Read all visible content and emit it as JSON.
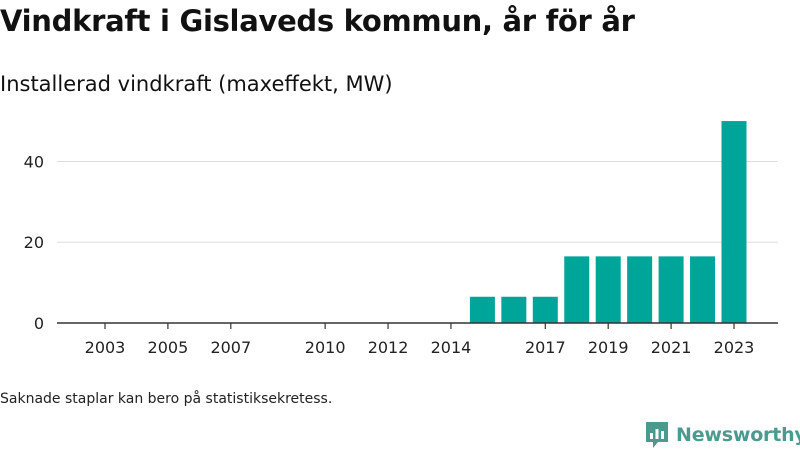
{
  "title": "Vindkraft i Gislaveds kommun, år för år",
  "subtitle": "Installerad vindkraft (maxeffekt, MW)",
  "footnote": "Saknade staplar kan bero på statistiksekretess.",
  "brand": {
    "name": "Newsworthy",
    "icon": "newsworthy-chart-logo-icon"
  },
  "colors": {
    "bar": "#00a59a",
    "grid": "#dddddd",
    "axis": "#333333",
    "text": "#222222",
    "brand": "#4a9a90"
  },
  "chart_data": {
    "type": "bar",
    "categories": [
      "2003",
      "2004",
      "2005",
      "2006",
      "2007",
      "2008",
      "2009",
      "2010",
      "2011",
      "2012",
      "2013",
      "2014",
      "2015",
      "2016",
      "2017",
      "2018",
      "2019",
      "2020",
      "2021",
      "2022",
      "2023"
    ],
    "x_tick_labels": [
      "2003",
      "2005",
      "2007",
      "2010",
      "2012",
      "2014",
      "2017",
      "2019",
      "2021",
      "2023"
    ],
    "values": [
      0,
      0,
      0,
      0,
      0,
      0,
      0,
      0,
      0,
      0,
      0,
      0,
      6.5,
      6.5,
      6.5,
      16.5,
      16.5,
      16.5,
      16.5,
      16.5,
      50
    ],
    "yticks": [
      0,
      20,
      40
    ],
    "ylim": [
      0,
      52
    ],
    "grid": true
  }
}
